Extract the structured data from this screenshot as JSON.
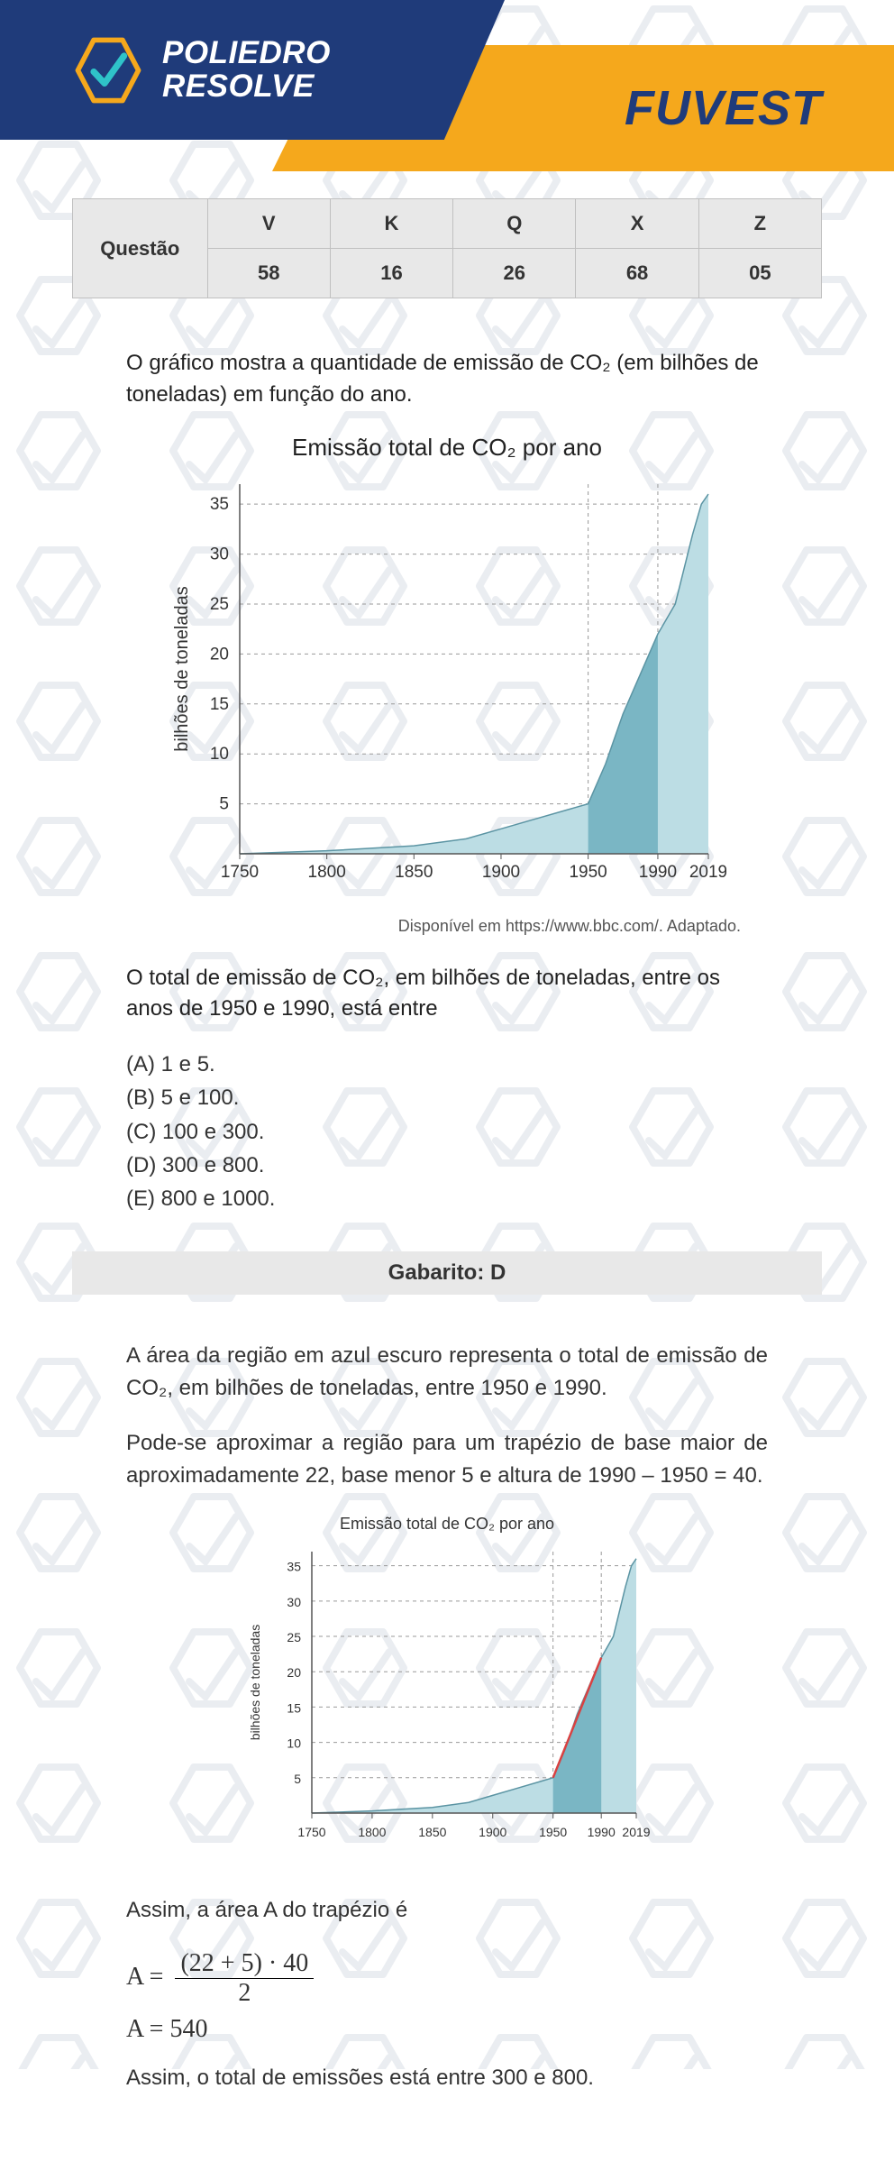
{
  "brand": {
    "line1": "POLIEDRO",
    "line2": "RESOLVE",
    "exam": "FUVEST"
  },
  "qtable": {
    "row_label": "Questão",
    "headers": [
      "V",
      "K",
      "Q",
      "X",
      "Z"
    ],
    "values": [
      "58",
      "16",
      "26",
      "68",
      "05"
    ]
  },
  "intro": "O gráfico mostra a quantidade de emissão de CO₂ (em bilhões de toneladas) em função do ano.",
  "chart1": {
    "title": "Emissão total de CO₂ por ano",
    "ylabel": "bilhões de toneladas",
    "yticks": [
      5,
      10,
      15,
      20,
      25,
      30,
      35
    ],
    "xticks": [
      1750,
      1800,
      1850,
      1900,
      1950,
      1990,
      2019
    ],
    "ylim": [
      0,
      37
    ],
    "xlim": [
      1750,
      2019
    ],
    "highlight_range": [
      1950,
      1990
    ],
    "area_color_light": "#bcdde4",
    "area_color_dark": "#7ab6c4",
    "grid_color": "#999999",
    "axis_color": "#555555",
    "approx_series": [
      [
        1750,
        0
      ],
      [
        1800,
        0.3
      ],
      [
        1850,
        0.8
      ],
      [
        1880,
        1.5
      ],
      [
        1900,
        2.5
      ],
      [
        1920,
        3.5
      ],
      [
        1940,
        4.5
      ],
      [
        1950,
        5
      ],
      [
        1960,
        9
      ],
      [
        1970,
        14
      ],
      [
        1980,
        18
      ],
      [
        1990,
        22
      ],
      [
        2000,
        25
      ],
      [
        2010,
        32
      ],
      [
        2015,
        35
      ],
      [
        2019,
        36
      ]
    ]
  },
  "source": "Disponível em https://www.bbc.com/. Adaptado.",
  "question2": "O total de emissão de CO₂, em bilhões de toneladas, entre os anos de 1950 e 1990, está entre",
  "options": {
    "A": "(A) 1 e 5.",
    "B": "(B) 5 e 100.",
    "C": "(C) 100 e 300.",
    "D": "(D) 300 e 800.",
    "E": "(E) 800 e 1000."
  },
  "gabarito": "Gabarito: D",
  "expl1": "A área da região em azul escuro representa o total de emissão de CO₂, em bilhões de toneladas, entre 1950 e 1990.",
  "expl2": "Pode-se aproximar a região para um trapézio de base maior de aproximadamente 22, base menor 5 e altura de 1990 – 1950 = 40.",
  "chart2": {
    "title": "Emissão total de CO₂ por ano",
    "trapezoid_line_color": "#d94141",
    "trapezoid_points": [
      [
        1950,
        5
      ],
      [
        1990,
        22
      ]
    ]
  },
  "expl3": "Assim, a área A do trapézio é",
  "formula": {
    "numerator": "(22 + 5) · 40",
    "denominator": "2",
    "lhs": "A =",
    "result": "A = 540"
  },
  "conclusion": "Assim, o total de emissões está entre 300 e 800."
}
